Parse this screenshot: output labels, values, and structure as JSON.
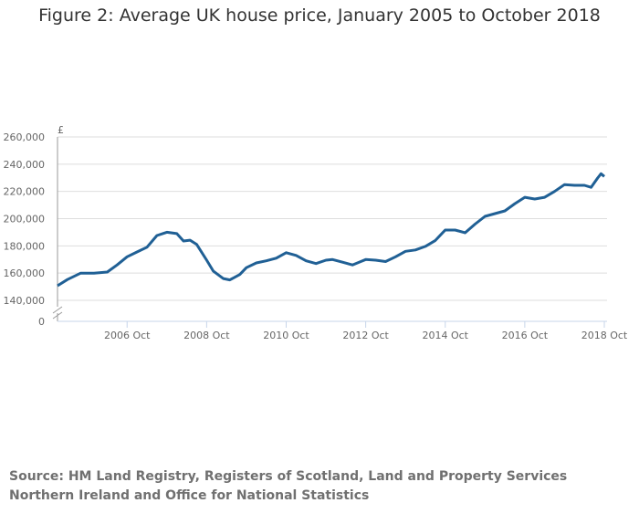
{
  "chart_data": {
    "type": "line",
    "title": "Figure 2: Average UK house price, January 2005 to October 2018",
    "ylabel": "£",
    "xlabel": "",
    "ylim": [
      140000,
      260000
    ],
    "y_axis_break": true,
    "y_ticks": [
      "0",
      "140,000",
      "160,000",
      "180,000",
      "200,000",
      "220,000",
      "240,000",
      "260,000"
    ],
    "y_tick_values": [
      140000,
      160000,
      180000,
      200000,
      220000,
      240000,
      260000
    ],
    "x_ticks": [
      "2006 Oct",
      "2008 Oct",
      "2010 Oct",
      "2012 Oct",
      "2014 Oct",
      "2016 Oct",
      "2018 Oct"
    ],
    "x_tick_dates": [
      "2006-10",
      "2008-10",
      "2010-10",
      "2012-10",
      "2014-10",
      "2016-10",
      "2018-10"
    ],
    "xlim": [
      "2005-01",
      "2018-10"
    ],
    "grid": true,
    "line_color": "#206095",
    "series": [
      {
        "x": [
          "2005-01",
          "2005-04",
          "2005-08",
          "2005-12",
          "2006-04",
          "2006-07",
          "2006-10",
          "2007-01",
          "2007-04",
          "2007-07",
          "2007-10",
          "2008-01",
          "2008-03",
          "2008-05",
          "2008-07",
          "2008-10",
          "2008-12",
          "2009-03",
          "2009-05",
          "2009-08",
          "2009-10",
          "2010-01",
          "2010-04",
          "2010-07",
          "2010-10",
          "2011-01",
          "2011-04",
          "2011-07",
          "2011-10",
          "2011-12",
          "2012-03",
          "2012-06",
          "2012-08",
          "2012-10",
          "2013-01",
          "2013-04",
          "2013-07",
          "2013-10",
          "2014-01",
          "2014-04",
          "2014-07",
          "2014-10",
          "2015-01",
          "2015-04",
          "2015-07",
          "2015-10",
          "2016-01",
          "2016-04",
          "2016-07",
          "2016-10",
          "2017-01",
          "2017-04",
          "2017-07",
          "2017-10",
          "2018-01",
          "2018-04",
          "2018-06",
          "2018-08",
          "2018-09",
          "2018-10"
        ],
        "values": [
          150700,
          155300,
          160000,
          160000,
          160800,
          166000,
          172000,
          175500,
          179000,
          187600,
          190000,
          189000,
          183600,
          184200,
          181000,
          169500,
          161500,
          156000,
          155000,
          159000,
          164000,
          167500,
          169000,
          171000,
          175000,
          173000,
          169000,
          167000,
          169500,
          170000,
          168000,
          166000,
          168000,
          170000,
          169500,
          168500,
          172000,
          176000,
          177000,
          179600,
          184000,
          191600,
          191600,
          189600,
          196000,
          201700,
          203700,
          205700,
          211000,
          215700,
          214400,
          215700,
          220000,
          225000,
          224500,
          224500,
          223000,
          229800,
          233000,
          231000
        ]
      }
    ]
  },
  "source": "Source: HM Land Registry, Registers of Scotland, Land and Property Services Northern Ireland and Office for National Statistics"
}
